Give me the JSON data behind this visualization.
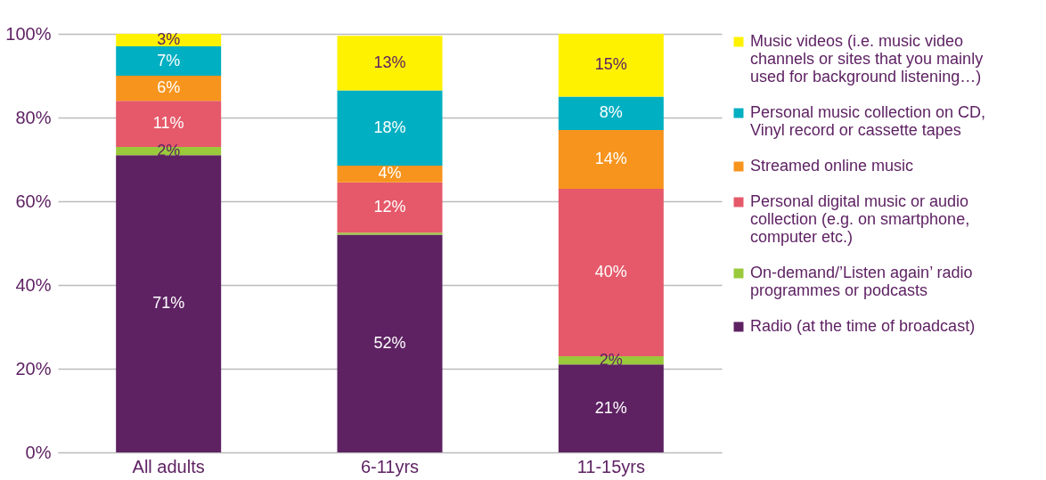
{
  "chart_data": {
    "type": "bar",
    "stacked": true,
    "categories": [
      "All adults",
      "6-11yrs",
      "11-15yrs"
    ],
    "ylim": [
      0,
      100
    ],
    "yticks": [
      {
        "value": 0,
        "label": "0%"
      },
      {
        "value": 20,
        "label": "20%"
      },
      {
        "value": 40,
        "label": "40%"
      },
      {
        "value": 60,
        "label": "60%"
      },
      {
        "value": 80,
        "label": "80%"
      },
      {
        "value": 100,
        "label": "100%"
      }
    ],
    "grid": "y",
    "legend": "right",
    "series": [
      {
        "name": "Radio (at the time of broadcast)",
        "color": "#5e2263",
        "values": [
          71,
          52,
          21
        ],
        "value_labels": [
          "71%",
          "52%",
          "21%"
        ]
      },
      {
        "name": "On-demand/’Listen again’ radio programmes or podcasts",
        "color": "#9bc93c",
        "values": [
          2,
          0.5,
          2
        ],
        "value_labels": [
          "2%",
          null,
          "2%"
        ]
      },
      {
        "name": "Personal digital music or audio collection (e.g. on smartphone, computer etc.)",
        "color": "#e5596a",
        "values": [
          11,
          12,
          40
        ],
        "value_labels": [
          "11%",
          "12%",
          "40%"
        ]
      },
      {
        "name": "Streamed online music",
        "color": "#f7941d",
        "values": [
          6,
          4,
          14
        ],
        "value_labels": [
          "6%",
          "4%",
          "14%"
        ]
      },
      {
        "name": "Personal music collection on CD, Vinyl record or cassette tapes",
        "color": "#00afc1",
        "values": [
          7,
          18,
          8
        ],
        "value_labels": [
          "7%",
          "18%",
          "8%"
        ]
      },
      {
        "name": "Music videos (i.e. music video channels or sites that you mainly used for background listening…)",
        "color": "#fff200",
        "values": [
          3,
          13,
          15
        ],
        "value_labels": [
          "3%",
          "13%",
          "15%"
        ]
      }
    ]
  }
}
